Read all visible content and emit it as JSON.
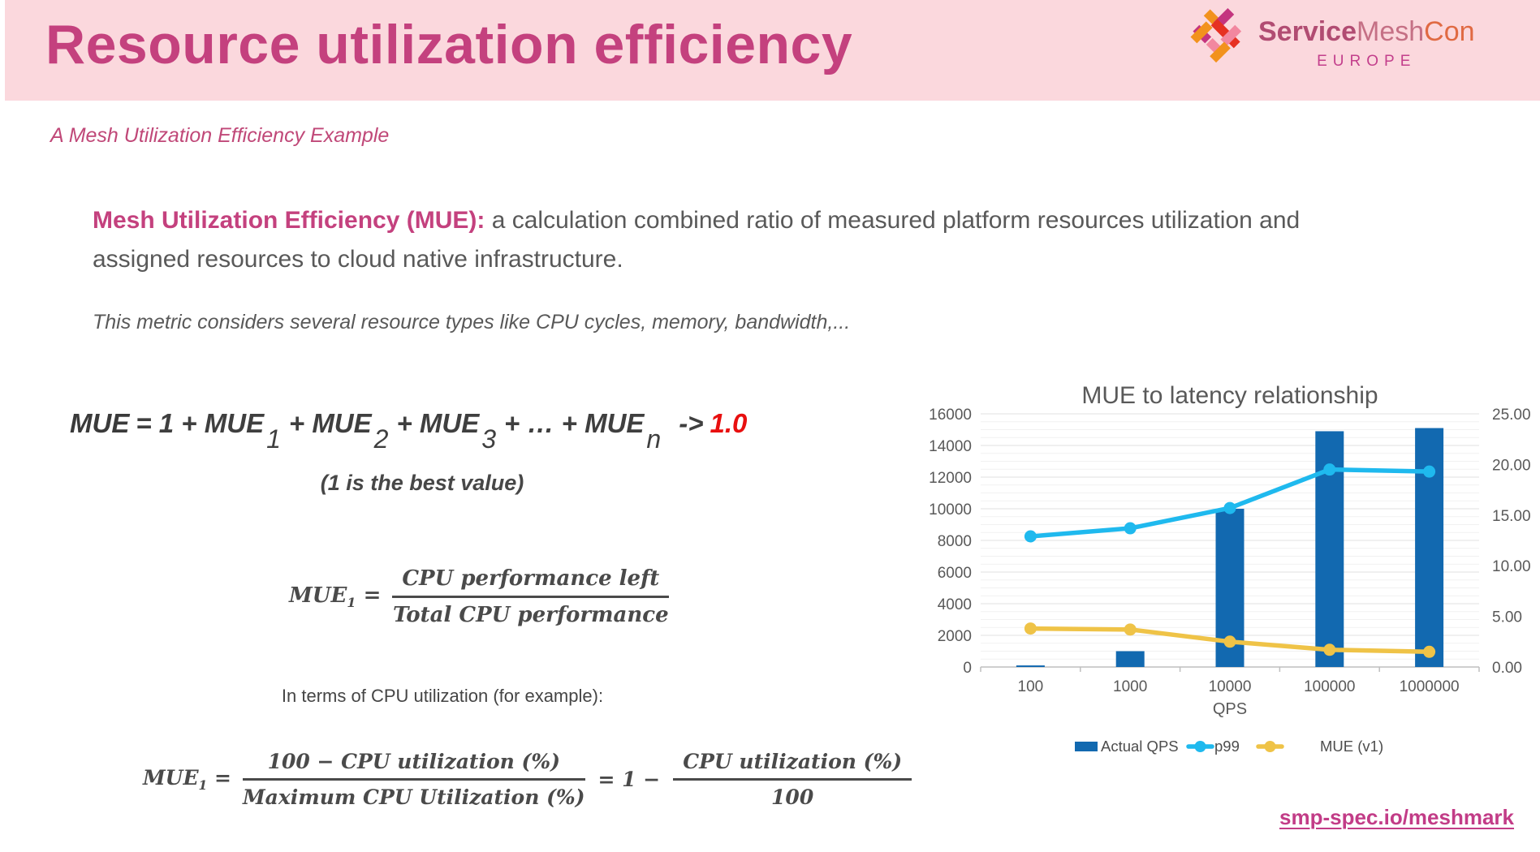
{
  "header": {
    "title": "Resource utilization efficiency"
  },
  "logo": {
    "service": "Service",
    "mesh": "Mesh",
    "con": "Con",
    "region": "EUROPE",
    "icon_colors": {
      "orange": "#F2921D",
      "magenta": "#C4357F",
      "red": "#E63122",
      "pink": "#F2879F"
    }
  },
  "subtitle": "A Mesh Utilization Efficiency Example",
  "intro": {
    "lead": "Mesh Utilization Efficiency (MUE):",
    "rest": " a calculation combined ratio of measured platform resources utilization and assigned resources to cloud native infrastructure."
  },
  "note": "This metric considers several resource types like CPU cycles, memory, bandwidth,...",
  "formula_sum": {
    "lead": "MUE",
    "eq": "= 1 + MUE",
    "sub1": "1",
    "plus2": "+ MUE",
    "sub2": "2",
    "plus3": "+ MUE",
    "sub3": "3",
    "plus4": "+ … + MUE",
    "subn": "n",
    "arrow": "->",
    "target": "1.0",
    "caption": "(1 is the best value)"
  },
  "formula_mue1": {
    "lhs": "MUE",
    "sub": "1",
    "eq": "=",
    "numerator": "CPU performance left",
    "denominator": "Total CPU performance"
  },
  "cpu_note": "In terms of CPU utilization (for example):",
  "formula_cpu": {
    "lhs": "MUE",
    "sub": "1",
    "eq": "=",
    "num1": "100 − CPU utilization (%)",
    "den1": "Maximum CPU Utilization (%)",
    "mid": "= 1 −",
    "num2": "CPU utilization (%)",
    "den2": "100"
  },
  "footer_link": {
    "text": "smp-spec.io/meshmark"
  },
  "chart_data": {
    "type": "combo-bar-line",
    "title": "MUE to latency relationship",
    "categories": [
      "100",
      "1000",
      "10000",
      "100000",
      "1000000"
    ],
    "xlabel": "QPS",
    "left_axis": {
      "min": 0,
      "max": 16000,
      "step": 2000,
      "minor_step": 500,
      "ticks": [
        0,
        2000,
        4000,
        6000,
        8000,
        10000,
        12000,
        14000,
        16000
      ]
    },
    "right_axis": {
      "min": 0,
      "max": 25,
      "step": 5,
      "ticks": [
        "0.00",
        "5.00",
        "10.00",
        "15.00",
        "20.00",
        "25.00"
      ]
    },
    "series": [
      {
        "name": "Actual QPS",
        "type": "bar",
        "axis": "left",
        "color": "#1269B0",
        "values": [
          100,
          1000,
          10000,
          14900,
          15100
        ]
      },
      {
        "name": "p99",
        "type": "line",
        "axis": "right",
        "color": "#1FB9EE",
        "values": [
          12.9,
          13.7,
          15.7,
          19.5,
          19.3
        ]
      },
      {
        "name": "MUE (v1)",
        "type": "line",
        "axis": "right",
        "color": "#EFC347",
        "values": [
          3.8,
          3.7,
          2.5,
          1.7,
          1.5
        ]
      }
    ],
    "legend_position": "bottom",
    "grid": true
  }
}
